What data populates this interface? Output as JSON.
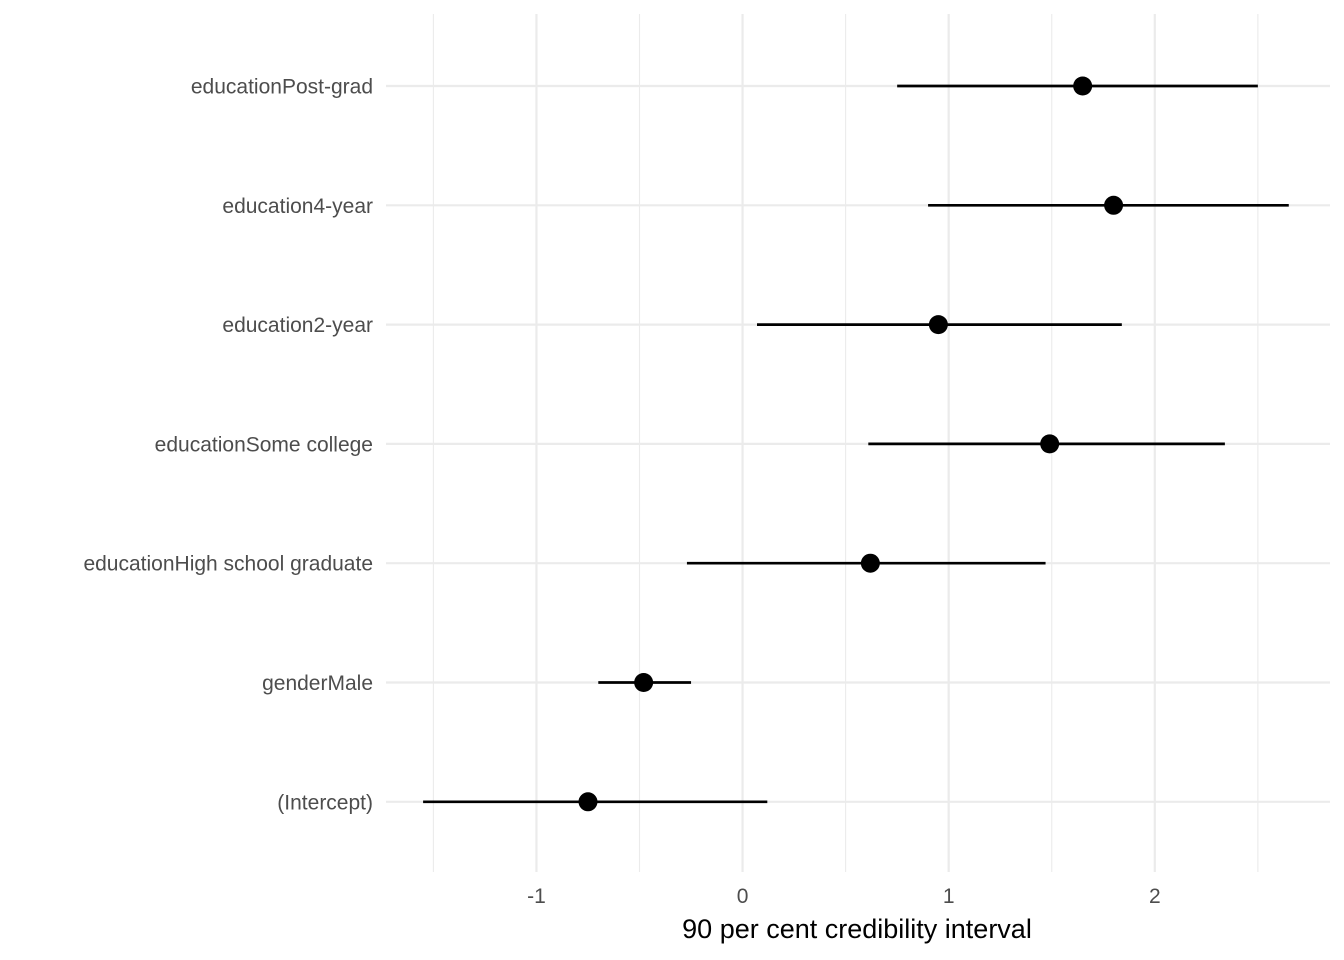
{
  "chart_data": {
    "type": "scatter",
    "xlabel": "90 per cent credibility interval",
    "ylabel": "",
    "title": "",
    "xlim": [
      -1.73,
      2.85
    ],
    "x_ticks": [
      -1,
      0,
      1,
      2
    ],
    "x_tick_labels": [
      "-1",
      "0",
      "1",
      "2"
    ],
    "grid": true,
    "legend": "none",
    "categories": [
      "educationPost-grad",
      "education4-year",
      "education2-year",
      "educationSome college",
      "educationHigh school graduate",
      "genderMale",
      "(Intercept)"
    ],
    "estimates": [
      1.65,
      1.8,
      0.95,
      1.49,
      0.62,
      -0.48,
      -0.75
    ],
    "lower": [
      0.75,
      0.9,
      0.07,
      0.61,
      -0.27,
      -0.7,
      -1.55
    ],
    "upper": [
      2.5,
      2.65,
      1.84,
      2.34,
      1.47,
      -0.25,
      0.12
    ],
    "colors": {
      "point": "#000000",
      "interval": "#000000",
      "grid": "#ebebeb"
    }
  }
}
